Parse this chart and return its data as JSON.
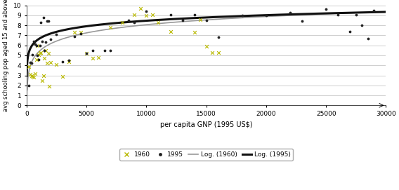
{
  "title": "",
  "xlabel": "per capita GNP (1995 US$)",
  "ylabel": "avg schooling pop aged 15 and above",
  "xlim": [
    0,
    30000
  ],
  "ylim": [
    0,
    10
  ],
  "xticks": [
    0,
    5000,
    10000,
    15000,
    20000,
    25000,
    30000
  ],
  "yticks": [
    0,
    1,
    2,
    3,
    4,
    5,
    6,
    7,
    8,
    9,
    10
  ],
  "scatter_1960": [
    [
      200,
      3.9
    ],
    [
      300,
      3.1
    ],
    [
      400,
      3.0
    ],
    [
      500,
      2.9
    ],
    [
      600,
      2.8
    ],
    [
      700,
      3.2
    ],
    [
      800,
      4.6
    ],
    [
      900,
      6.0
    ],
    [
      1000,
      5.1
    ],
    [
      1100,
      5.2
    ],
    [
      1200,
      5.3
    ],
    [
      1300,
      2.5
    ],
    [
      1400,
      3.0
    ],
    [
      1500,
      4.7
    ],
    [
      1600,
      5.5
    ],
    [
      1700,
      4.2
    ],
    [
      1800,
      5.2
    ],
    [
      1900,
      1.9
    ],
    [
      2000,
      4.3
    ],
    [
      2500,
      4.1
    ],
    [
      3000,
      2.9
    ],
    [
      3500,
      4.4
    ],
    [
      4000,
      7.3
    ],
    [
      4500,
      7.3
    ],
    [
      5000,
      5.2
    ],
    [
      5500,
      4.7
    ],
    [
      6000,
      4.8
    ],
    [
      7000,
      7.8
    ],
    [
      8000,
      8.3
    ],
    [
      9000,
      9.1
    ],
    [
      9500,
      9.7
    ],
    [
      10000,
      9.0
    ],
    [
      10500,
      9.1
    ],
    [
      11000,
      8.3
    ],
    [
      12000,
      7.4
    ],
    [
      14000,
      7.3
    ],
    [
      14500,
      8.6
    ],
    [
      15000,
      5.9
    ],
    [
      15500,
      5.3
    ],
    [
      16000,
      5.3
    ]
  ],
  "scatter_1995": [
    [
      200,
      2.0
    ],
    [
      300,
      4.3
    ],
    [
      400,
      4.2
    ],
    [
      500,
      5.1
    ],
    [
      600,
      6.4
    ],
    [
      700,
      6.1
    ],
    [
      800,
      6.0
    ],
    [
      900,
      5.0
    ],
    [
      1000,
      4.6
    ],
    [
      1100,
      6.0
    ],
    [
      1200,
      8.3
    ],
    [
      1300,
      6.4
    ],
    [
      1400,
      8.8
    ],
    [
      1500,
      5.5
    ],
    [
      1600,
      6.3
    ],
    [
      1700,
      8.4
    ],
    [
      1800,
      8.4
    ],
    [
      2000,
      6.6
    ],
    [
      2500,
      7.1
    ],
    [
      3000,
      4.4
    ],
    [
      3500,
      4.5
    ],
    [
      4000,
      6.9
    ],
    [
      4500,
      7.2
    ],
    [
      5000,
      5.2
    ],
    [
      5500,
      5.5
    ],
    [
      6500,
      5.5
    ],
    [
      7000,
      5.5
    ],
    [
      8500,
      8.5
    ],
    [
      9000,
      8.3
    ],
    [
      10000,
      9.4
    ],
    [
      12000,
      9.1
    ],
    [
      13000,
      8.5
    ],
    [
      14000,
      9.1
    ],
    [
      15000,
      8.5
    ],
    [
      16000,
      6.8
    ],
    [
      18000,
      9.0
    ],
    [
      20000,
      9.0
    ],
    [
      22000,
      9.3
    ],
    [
      23000,
      8.4
    ],
    [
      25000,
      9.6
    ],
    [
      26000,
      9.1
    ],
    [
      27000,
      7.4
    ],
    [
      27500,
      9.1
    ],
    [
      28000,
      8.0
    ],
    [
      28500,
      6.7
    ],
    [
      29000,
      9.5
    ]
  ],
  "log_1960_a": -2.8,
  "log_1960_b": 1.18,
  "log_1995_a": 1.1,
  "log_1995_b": 0.8,
  "color_1960": "#b8b800",
  "color_1995": "#222222",
  "line_color_1960": "#999999",
  "line_color_1995": "#111111",
  "background": "#ffffff",
  "figsize": [
    5.68,
    2.71
  ],
  "dpi": 100
}
